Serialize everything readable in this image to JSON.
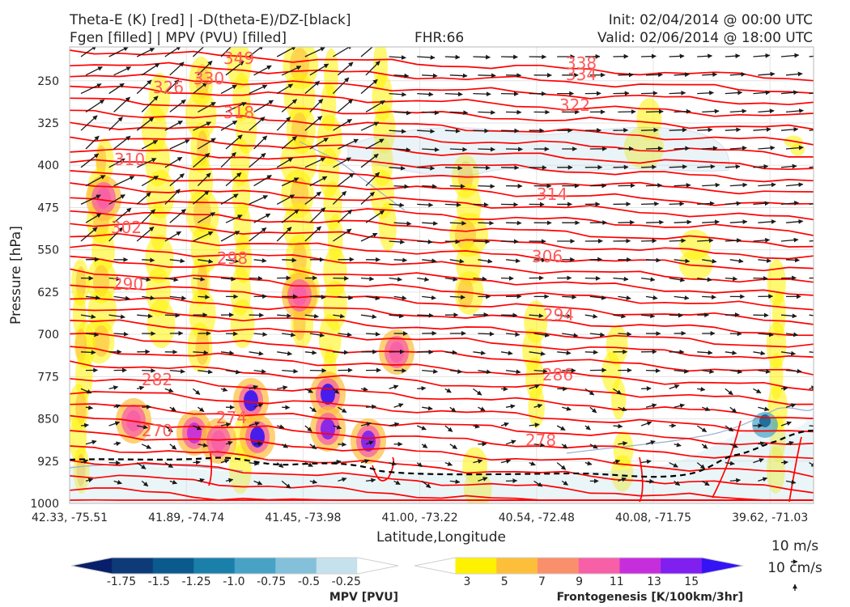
{
  "header": {
    "title_left_1": "Theta-E (K) [red] | -D(theta-E)/DZ-[black]",
    "title_left_2": "Fgen [filled] | MPV (PVU) [filled]",
    "fhr": "FHR:66",
    "init": "Init: 02/04/2014 @ 00:00 UTC",
    "valid": "Valid: 02/06/2014 @ 18:00 UTC"
  },
  "colors": {
    "theta_e": "#ff0000",
    "theta_e_label": "#ff5a5a",
    "wind": "#1a1a1a",
    "mpv_contour": "#9aaed0",
    "boundary": "#000000"
  },
  "chart_data": {
    "type": "cross-section",
    "xlabel": "Latitude,Longitude",
    "ylabel": "Pressure [hPa]",
    "x_ticks": [
      "42.33, -75.51",
      "41.89, -74.74",
      "41.45, -73.98",
      "41.00, -73.22",
      "40.54, -72.48",
      "40.08, -71.75",
      "39.62, -71.03"
    ],
    "y_ticks": [
      250,
      325,
      400,
      475,
      550,
      625,
      700,
      775,
      850,
      925,
      1000
    ],
    "ylim": [
      1000,
      190
    ],
    "theta_e_labels": [
      "349",
      "338",
      "334",
      "330",
      "326",
      "322",
      "318",
      "314",
      "310",
      "306",
      "302",
      "298",
      "294",
      "290",
      "286",
      "282",
      "278",
      "274",
      "270"
    ],
    "mpv_colorbar": {
      "label": "MPV [PVU]",
      "ticks": [
        "-1.75",
        "-1.5",
        "-1.25",
        "-1.0",
        "-0.75",
        "-0.5",
        "-0.25"
      ],
      "colors": [
        "#08206b",
        "#0e3b78",
        "#0b5a8e",
        "#1a7fa9",
        "#47a2c6",
        "#84c0d9",
        "#c4e1ec",
        "#ffffff"
      ]
    },
    "fgen_colorbar": {
      "label": "Frontogenesis [K/100km/3hr]",
      "ticks": [
        "3",
        "5",
        "7",
        "9",
        "11",
        "13",
        "15"
      ],
      "colors": [
        "#ffffff",
        "#fff200",
        "#fdbe3a",
        "#fa8f6c",
        "#f75fa7",
        "#c62edc",
        "#7f1ff0",
        "#3413f5"
      ]
    },
    "wind_key": {
      "line1": "10 m/s",
      "line2": "10 cm/s"
    }
  }
}
